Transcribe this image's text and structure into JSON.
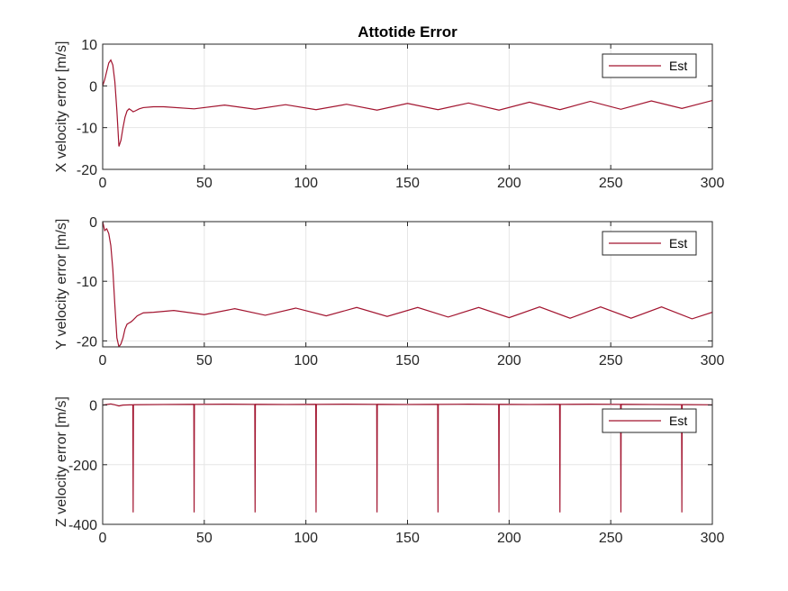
{
  "figure": {
    "title": "Attotide Error",
    "background": "#ffffff",
    "axes_color": "#262626",
    "grid_color": "#e6e6e6",
    "line_color": "#a2142f"
  },
  "chart_data": [
    {
      "type": "line",
      "ylabel": "X velocity error [m/s]",
      "xlabel": "",
      "xlim": [
        0,
        300
      ],
      "ylim": [
        -20,
        10
      ],
      "xticks": [
        0,
        50,
        100,
        150,
        200,
        250,
        300
      ],
      "yticks": [
        -20,
        -10,
        0,
        10
      ],
      "grid": true,
      "legend_position": "top-right",
      "series": [
        {
          "name": "Est",
          "color": "#a2142f",
          "x": [
            0,
            1,
            2,
            3,
            4,
            5,
            6,
            7,
            8,
            9,
            10,
            11,
            12,
            13,
            14,
            15,
            16,
            18,
            20,
            25,
            30,
            45,
            60,
            75,
            90,
            105,
            120,
            135,
            150,
            165,
            180,
            195,
            210,
            225,
            240,
            255,
            270,
            285,
            300
          ],
          "y": [
            0,
            1.5,
            3.5,
            5.5,
            6.2,
            5,
            1,
            -6,
            -14.5,
            -13,
            -10,
            -7.5,
            -6,
            -5.5,
            -5.8,
            -6.2,
            -6,
            -5.5,
            -5.2,
            -5,
            -5,
            -5.5,
            -4.6,
            -5.6,
            -4.5,
            -5.7,
            -4.4,
            -5.8,
            -4.2,
            -5.7,
            -4.1,
            -5.8,
            -3.9,
            -5.7,
            -3.7,
            -5.6,
            -3.6,
            -5.4,
            -3.5
          ]
        }
      ]
    },
    {
      "type": "line",
      "ylabel": "Y velocity error [m/s]",
      "xlabel": "",
      "xlim": [
        0,
        300
      ],
      "ylim": [
        -21,
        0
      ],
      "xticks": [
        0,
        50,
        100,
        150,
        200,
        250,
        300
      ],
      "yticks": [
        -20,
        -10,
        0
      ],
      "grid": true,
      "legend_position": "top-right",
      "series": [
        {
          "name": "Est",
          "color": "#a2142f",
          "x": [
            0,
            1,
            2,
            3,
            4,
            5,
            6,
            7,
            8,
            9,
            10,
            11,
            12,
            13,
            14,
            15,
            17,
            20,
            25,
            35,
            50,
            65,
            80,
            95,
            110,
            125,
            140,
            155,
            170,
            185,
            200,
            215,
            230,
            245,
            260,
            275,
            290,
            300
          ],
          "y": [
            0,
            -1.5,
            -1.2,
            -2,
            -4,
            -8,
            -14,
            -19.5,
            -21,
            -20.5,
            -19.5,
            -18,
            -17.2,
            -17,
            -16.8,
            -16.5,
            -15.8,
            -15.3,
            -15.2,
            -14.9,
            -15.6,
            -14.6,
            -15.7,
            -14.5,
            -15.8,
            -14.4,
            -15.9,
            -14.4,
            -16,
            -14.4,
            -16.1,
            -14.3,
            -16.2,
            -14.3,
            -16.2,
            -14.3,
            -16.3,
            -15.2
          ]
        }
      ]
    },
    {
      "type": "line",
      "ylabel": "Z velocity error [m/s]",
      "xlabel": "",
      "xlim": [
        0,
        300
      ],
      "ylim": [
        -400,
        20
      ],
      "xticks": [
        0,
        50,
        100,
        150,
        200,
        250,
        300
      ],
      "yticks": [
        -400,
        -200,
        0
      ],
      "grid": true,
      "legend_position": "top-right",
      "series": [
        {
          "name": "Est",
          "color": "#a2142f",
          "spike_x": [
            15,
            45,
            75,
            105,
            135,
            165,
            195,
            225,
            255,
            285
          ],
          "spike_min": -360,
          "x": [
            0,
            2,
            4,
            6,
            8,
            10,
            15,
            30,
            60,
            90,
            120,
            150,
            180,
            210,
            240,
            270,
            300
          ],
          "y": [
            0,
            2,
            4,
            1,
            -3,
            0,
            1,
            2,
            3,
            2,
            3,
            2,
            3,
            2,
            3,
            2,
            1
          ]
        }
      ]
    }
  ]
}
